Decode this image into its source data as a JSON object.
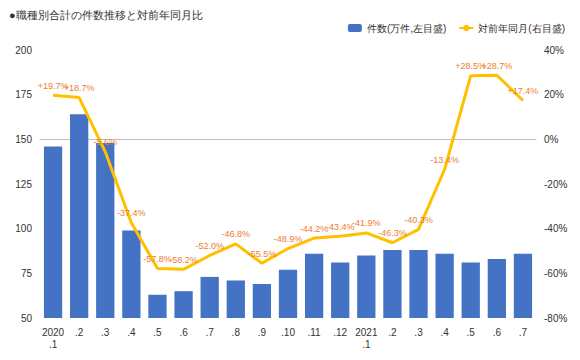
{
  "chart_data": {
    "type": "bar",
    "title": "●職種別合計の件数推移と対前年同月比",
    "categories": [
      "2020\n.1",
      ".2",
      ".3",
      ".4",
      ".5",
      ".6",
      ".7",
      ".8",
      ".9",
      ".10",
      ".11",
      ".12",
      "2021\n.1",
      ".2",
      ".3",
      ".4",
      ".5",
      ".6",
      ".7"
    ],
    "series": [
      {
        "name": "件数(万件,左目盛)",
        "type": "bar",
        "color": "#4472c4",
        "values": [
          146,
          164,
          148,
          99,
          63,
          65,
          73,
          71,
          69,
          77,
          86,
          81,
          85,
          88,
          88,
          86,
          81,
          83,
          86
        ]
      },
      {
        "name": "対前年同月(右目盛)",
        "type": "line",
        "color": "#ffc000",
        "axis": "y2",
        "data_labels": true,
        "values": [
          19.7,
          18.7,
          -5.6,
          -37.4,
          -57.8,
          -58.2,
          -52.0,
          -46.8,
          -55.5,
          -48.9,
          -44.2,
          -43.4,
          -41.9,
          -46.3,
          -40.3,
          -13.4,
          28.5,
          28.7,
          17.4
        ],
        "value_labels": [
          "+19.7%",
          "+18.7%",
          "-5.6%",
          "-37.4%",
          "-57.8%",
          "-58.2%",
          "-52.0%",
          "-46.8%",
          "-55.5%",
          "-48.9%",
          "-44.2%",
          "-43.4%",
          "-41.9%",
          "-46.3%",
          "-40.3%",
          "-13.4%",
          "+28.5%",
          "+28.7%",
          "+17.4%"
        ]
      }
    ],
    "ylim": [
      50,
      200
    ],
    "yticks": [
      50,
      75,
      100,
      125,
      150,
      175,
      200
    ],
    "y2lim": [
      -80,
      40
    ],
    "y2ticks": [
      {
        "value": -80,
        "label": "-80%"
      },
      {
        "value": -60,
        "label": "-60%"
      },
      {
        "value": -40,
        "label": "-40%"
      },
      {
        "value": -20,
        "label": "-20%"
      },
      {
        "value": 0,
        "label": "0%"
      },
      {
        "value": 20,
        "label": "20%"
      },
      {
        "value": 40,
        "label": "40%"
      }
    ],
    "grid": false,
    "legend": "top-right"
  }
}
